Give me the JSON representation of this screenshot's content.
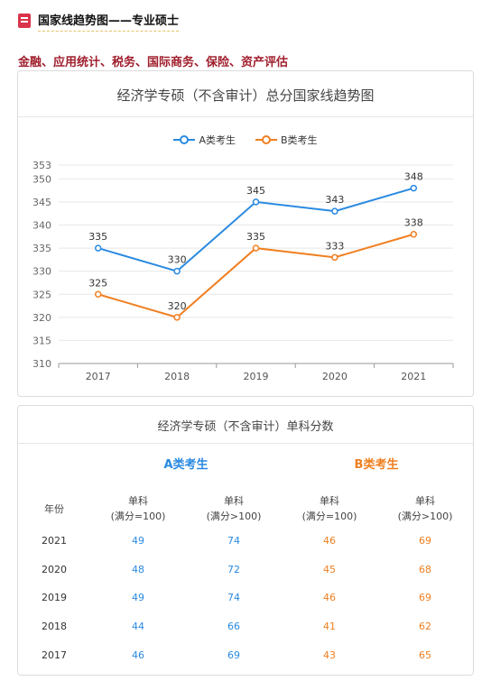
{
  "header": {
    "icon": "book-icon",
    "title": "国家线趋势图——专业硕士"
  },
  "subject": "金融、应用统计、税务、国际商务、保险、资产评估",
  "chart_data": {
    "type": "line",
    "title": "经济学专硕（不含审计）总分国家线趋势图",
    "categories": [
      "2017",
      "2018",
      "2019",
      "2020",
      "2021"
    ],
    "series": [
      {
        "name": "A类考生",
        "color": "#2a8ae0",
        "values": [
          335,
          330,
          345,
          343,
          348
        ]
      },
      {
        "name": "B类考生",
        "color": "#f07f21",
        "values": [
          325,
          320,
          335,
          333,
          338
        ]
      }
    ],
    "yticks": [
      310,
      315,
      320,
      325,
      330,
      335,
      340,
      345,
      350,
      353
    ],
    "ylim": [
      310,
      353
    ],
    "grid": true,
    "legend": "top-center"
  },
  "table": {
    "title": "经济学专硕（不含审计）单科分数",
    "group_a": "A类考生",
    "group_b": "B类考生",
    "headers": [
      "年份",
      "单科\n(满分=100)",
      "单科\n(满分>100)",
      "单科\n(满分=100)",
      "单科\n(满分>100)"
    ],
    "rows": [
      [
        "2021",
        "49",
        "74",
        "46",
        "69"
      ],
      [
        "2020",
        "48",
        "72",
        "45",
        "68"
      ],
      [
        "2019",
        "49",
        "74",
        "46",
        "69"
      ],
      [
        "2018",
        "44",
        "66",
        "41",
        "62"
      ],
      [
        "2017",
        "46",
        "69",
        "43",
        "65"
      ]
    ]
  }
}
